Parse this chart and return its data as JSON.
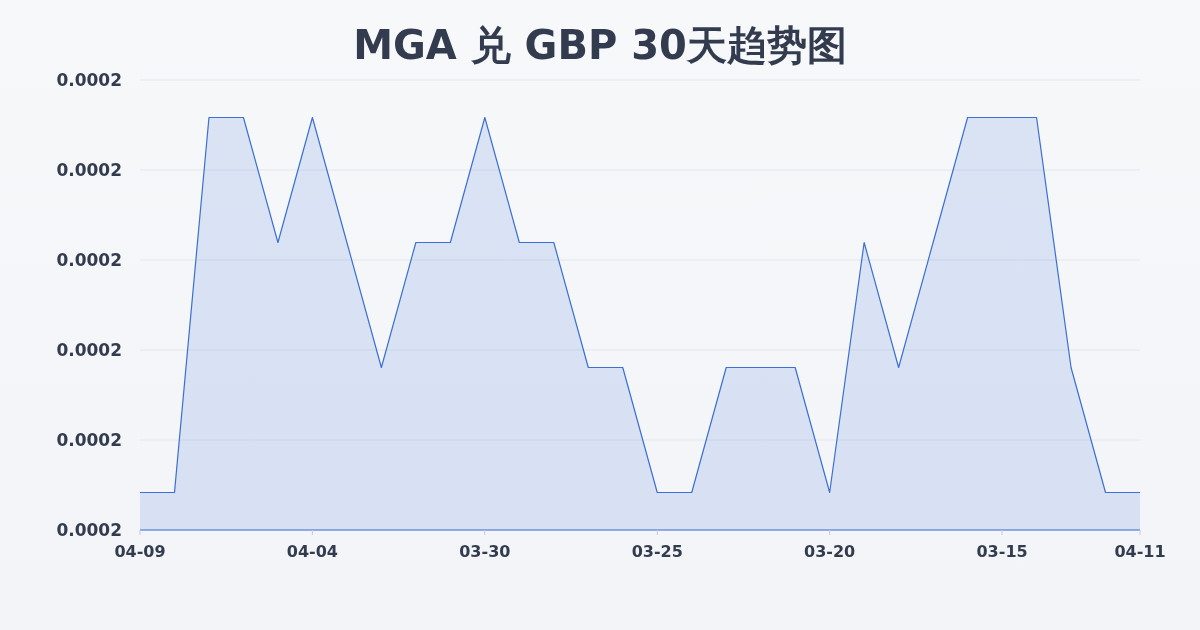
{
  "chart_data": {
    "type": "area",
    "title": "MGA 兑 GBP 30天趋势图",
    "categories": [
      "04-09",
      null,
      null,
      null,
      null,
      "04-04",
      null,
      null,
      null,
      null,
      "03-30",
      null,
      null,
      null,
      null,
      "03-25",
      null,
      null,
      null,
      null,
      "03-20",
      null,
      null,
      null,
      null,
      "03-15",
      null,
      null,
      null,
      "04-11"
    ],
    "series": [
      {
        "color": "#3b6fd4",
        "values": [
          0.000165,
          0.000165,
          0.000168,
          0.000168,
          0.000167,
          0.000168,
          0.000167,
          0.000166,
          0.000167,
          0.000167,
          0.000168,
          0.000167,
          0.000167,
          0.000166,
          0.000166,
          0.000165,
          0.000165,
          0.000166,
          0.000166,
          0.000166,
          0.000165,
          0.000167,
          0.000166,
          0.000167,
          0.000168,
          0.000168,
          0.000168,
          0.000166,
          0.000165,
          0.000165
        ]
      }
    ],
    "ylim": [
      0.0001647,
      0.0001683
    ],
    "yticks": [
      {
        "value": 0.0001647,
        "label": "0.0002"
      },
      {
        "value": 0.00016542,
        "label": "0.0002"
      },
      {
        "value": 0.00016614,
        "label": "0.0002"
      },
      {
        "value": 0.00016686,
        "label": "0.0002"
      },
      {
        "value": 0.00016758,
        "label": "0.0002"
      },
      {
        "value": 0.0001683,
        "label": "0.0002"
      }
    ],
    "grid": "y"
  }
}
